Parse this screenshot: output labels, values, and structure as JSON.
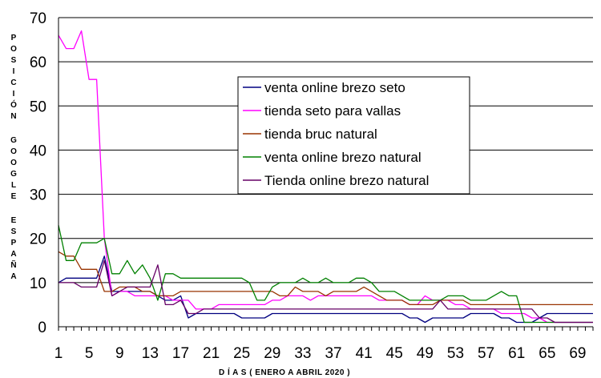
{
  "chart_data": {
    "type": "line",
    "title": "",
    "xlabel": "D Í A S ( ENERO A ABRIL 2020 )",
    "ylabel": "POSICIÓN GOOGLE ESPAÑA",
    "ylim": [
      0,
      70
    ],
    "xlim": [
      1,
      71
    ],
    "yticks": [
      0,
      10,
      20,
      30,
      40,
      50,
      60,
      70
    ],
    "xticks": [
      1,
      5,
      9,
      13,
      17,
      21,
      25,
      29,
      33,
      37,
      41,
      45,
      49,
      53,
      57,
      61,
      65,
      69
    ],
    "grid": "horizontal",
    "legend_position": "upper-right inside",
    "x": [
      1,
      2,
      3,
      4,
      5,
      6,
      7,
      8,
      9,
      10,
      11,
      12,
      13,
      14,
      15,
      16,
      17,
      18,
      19,
      20,
      21,
      22,
      23,
      24,
      25,
      26,
      27,
      28,
      29,
      30,
      31,
      32,
      33,
      34,
      35,
      36,
      37,
      38,
      39,
      40,
      41,
      42,
      43,
      44,
      45,
      46,
      47,
      48,
      49,
      50,
      51,
      52,
      53,
      54,
      55,
      56,
      57,
      58,
      59,
      60,
      61,
      62,
      63,
      64,
      65,
      66,
      67,
      68,
      69,
      70,
      71
    ],
    "series": [
      {
        "name": "venta online brezo seto",
        "color": "#000080",
        "values": [
          10,
          11,
          11,
          11,
          11,
          11,
          16,
          8,
          8,
          8,
          8,
          8,
          8,
          7,
          6,
          6,
          7,
          2,
          3,
          3,
          3,
          3,
          3,
          3,
          2,
          2,
          2,
          2,
          3,
          3,
          3,
          3,
          3,
          3,
          3,
          3,
          3,
          3,
          3,
          3,
          3,
          3,
          3,
          3,
          3,
          3,
          2,
          2,
          1,
          2,
          2,
          2,
          2,
          2,
          3,
          3,
          3,
          3,
          2,
          2,
          1,
          1,
          1,
          2,
          3,
          3,
          3,
          3,
          3,
          3,
          3
        ]
      },
      {
        "name": "tienda seto para vallas",
        "color": "#ff00ff",
        "values": [
          66,
          63,
          63,
          67,
          56,
          56,
          20,
          7,
          8,
          8,
          7,
          7,
          7,
          7,
          7,
          6,
          6,
          6,
          4,
          4,
          4,
          5,
          5,
          5,
          5,
          5,
          5,
          5,
          6,
          6,
          7,
          7,
          7,
          6,
          7,
          7,
          7,
          7,
          7,
          7,
          7,
          7,
          6,
          6,
          6,
          6,
          5,
          5,
          7,
          6,
          6,
          6,
          5,
          5,
          4,
          4,
          4,
          4,
          3,
          3,
          3,
          3,
          2,
          2,
          1,
          1,
          1,
          1,
          1,
          1,
          1
        ]
      },
      {
        "name": "tienda bruc natural",
        "color": "#993300",
        "values": [
          17,
          16,
          16,
          13,
          13,
          13,
          8,
          8,
          9,
          9,
          9,
          8,
          8,
          7,
          7,
          7,
          8,
          8,
          8,
          8,
          8,
          8,
          8,
          8,
          8,
          8,
          8,
          8,
          8,
          7,
          7,
          9,
          8,
          8,
          8,
          7,
          8,
          8,
          8,
          8,
          9,
          8,
          7,
          6,
          6,
          6,
          5,
          5,
          5,
          5,
          6,
          6,
          6,
          6,
          5,
          5,
          5,
          5,
          5,
          5,
          5,
          5,
          5,
          5,
          5,
          5,
          5,
          5,
          5,
          5,
          5
        ]
      },
      {
        "name": "venta online brezo natural",
        "color": "#008000",
        "values": [
          23,
          15,
          15,
          19,
          19,
          19,
          20,
          12,
          12,
          15,
          12,
          14,
          11,
          6,
          12,
          12,
          11,
          11,
          11,
          11,
          11,
          11,
          11,
          11,
          11,
          10,
          6,
          6,
          9,
          10,
          10,
          10,
          11,
          10,
          10,
          11,
          10,
          10,
          10,
          11,
          11,
          10,
          8,
          8,
          8,
          7,
          6,
          6,
          6,
          6,
          6,
          7,
          7,
          7,
          6,
          6,
          6,
          7,
          8,
          7,
          7,
          1,
          1,
          1,
          1,
          1,
          1,
          1,
          1,
          1,
          1
        ]
      },
      {
        "name": "Tienda online brezo natural",
        "color": "#660066",
        "values": [
          10,
          10,
          10,
          9,
          9,
          9,
          15,
          7,
          8,
          9,
          9,
          9,
          9,
          14,
          5,
          5,
          6,
          3,
          3,
          4,
          4,
          4,
          4,
          4,
          4,
          4,
          4,
          4,
          4,
          4,
          4,
          4,
          4,
          4,
          4,
          4,
          4,
          4,
          4,
          4,
          4,
          4,
          4,
          4,
          4,
          4,
          4,
          4,
          4,
          4,
          6,
          4,
          4,
          4,
          4,
          4,
          4,
          4,
          4,
          4,
          4,
          4,
          4,
          2,
          2,
          1,
          1,
          1,
          1,
          1,
          1
        ]
      }
    ]
  }
}
